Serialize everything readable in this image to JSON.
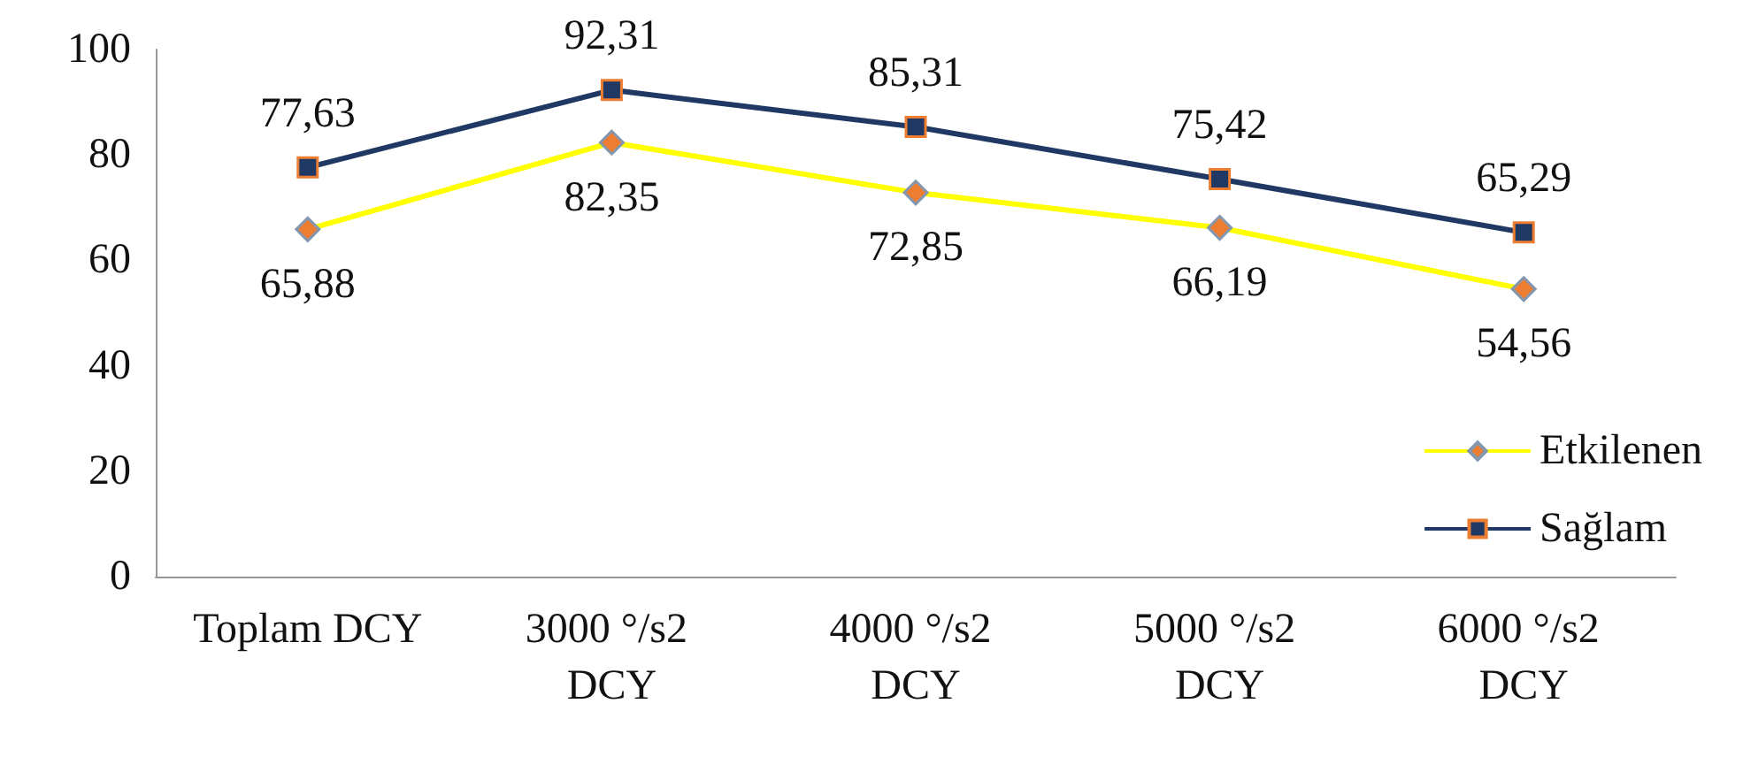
{
  "chart_data": {
    "type": "line",
    "categories": [
      "Toplam DCY",
      "3000 °/s2 DCY",
      "4000 °/s2 DCY",
      "5000 °/s2 DCY",
      "6000 °/s2 DCY"
    ],
    "series": [
      {
        "name": "Etkilenen",
        "color": "#ffff00",
        "marker": "diamond",
        "values": [
          65.88,
          82.35,
          72.85,
          66.19,
          54.56
        ],
        "value_labels": [
          "65,88",
          "82,35",
          "72,85",
          "66,19",
          "54,56"
        ]
      },
      {
        "name": "Sağlam",
        "color": "#1f3864",
        "marker": "square",
        "values": [
          77.63,
          92.31,
          85.31,
          75.42,
          65.29
        ],
        "value_labels": [
          "77,63",
          "92,31",
          "85,31",
          "75,42",
          "65,29"
        ]
      }
    ],
    "ylim": [
      0,
      100
    ],
    "yticks": [
      0,
      20,
      40,
      60,
      80,
      100
    ],
    "grid": false,
    "legend": "right"
  }
}
